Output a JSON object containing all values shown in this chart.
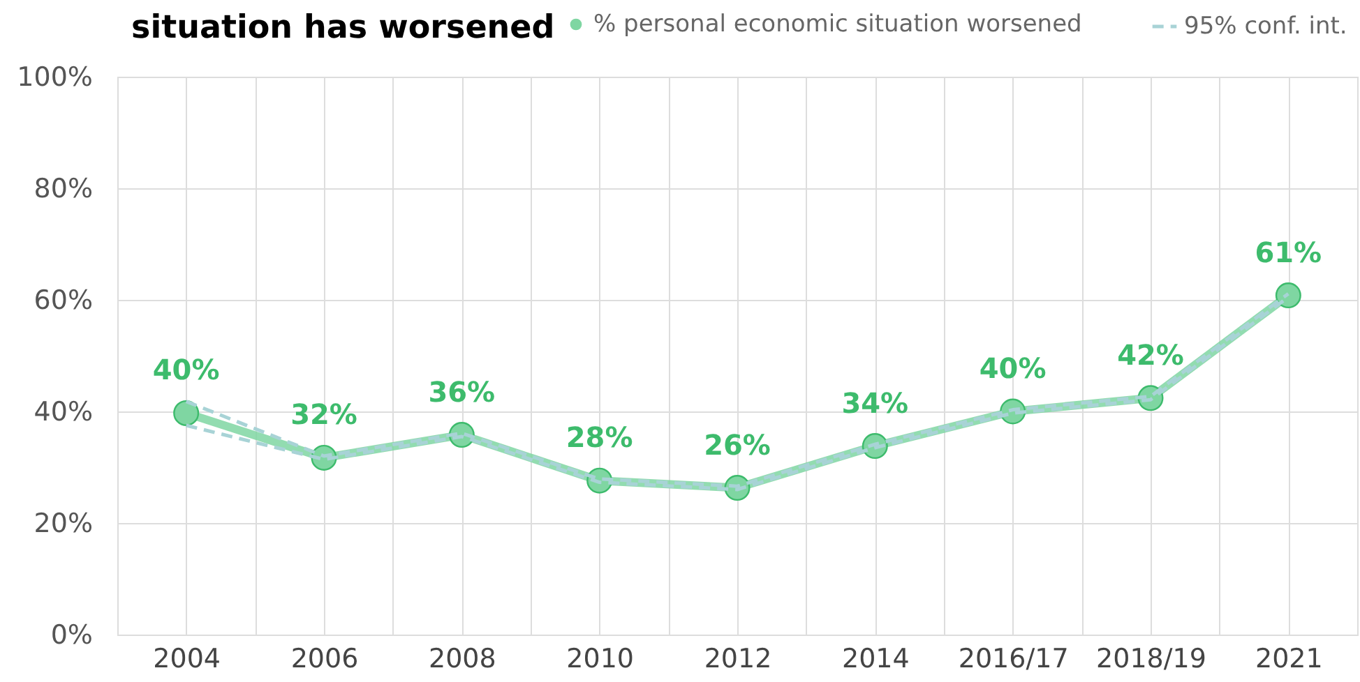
{
  "chart_data": {
    "type": "line",
    "title": "situation has worsened",
    "categories": [
      "2004",
      "2006",
      "2008",
      "2010",
      "2012",
      "2014",
      "2016/17",
      "2018/19",
      "2021"
    ],
    "series": [
      {
        "name": "% personal economic situation worsened",
        "color": "#7fd6a2",
        "marker": "circle",
        "values": [
          39.7,
          31.7,
          35.8,
          27.6,
          26.3,
          33.8,
          40.0,
          42.4,
          60.8
        ],
        "value_labels": [
          "40%",
          "32%",
          "36%",
          "28%",
          "26%",
          "34%",
          "40%",
          "42%",
          "61%"
        ]
      },
      {
        "name": "95% conf. int.",
        "color": "#a8d3d6",
        "line_style": "dashed",
        "values": [
          41.8,
          32.0,
          36.1,
          27.9,
          26.6,
          34.1,
          40.3,
          42.7,
          61.1
        ]
      },
      {
        "color": "#a8d3d6",
        "line_style": "dashed",
        "values": [
          37.5,
          31.4,
          35.5,
          27.3,
          26.0,
          33.5,
          39.7,
          42.1,
          60.5
        ]
      }
    ],
    "ylim": [
      0,
      100
    ],
    "yticks": [
      {
        "value": 0,
        "label": "0%"
      },
      {
        "value": 20,
        "label": "20%"
      },
      {
        "value": 40,
        "label": "40%"
      },
      {
        "value": 60,
        "label": "60%"
      },
      {
        "value": 80,
        "label": "80%"
      },
      {
        "value": 100,
        "label": "100%"
      }
    ],
    "grid": true,
    "legend": "top"
  }
}
